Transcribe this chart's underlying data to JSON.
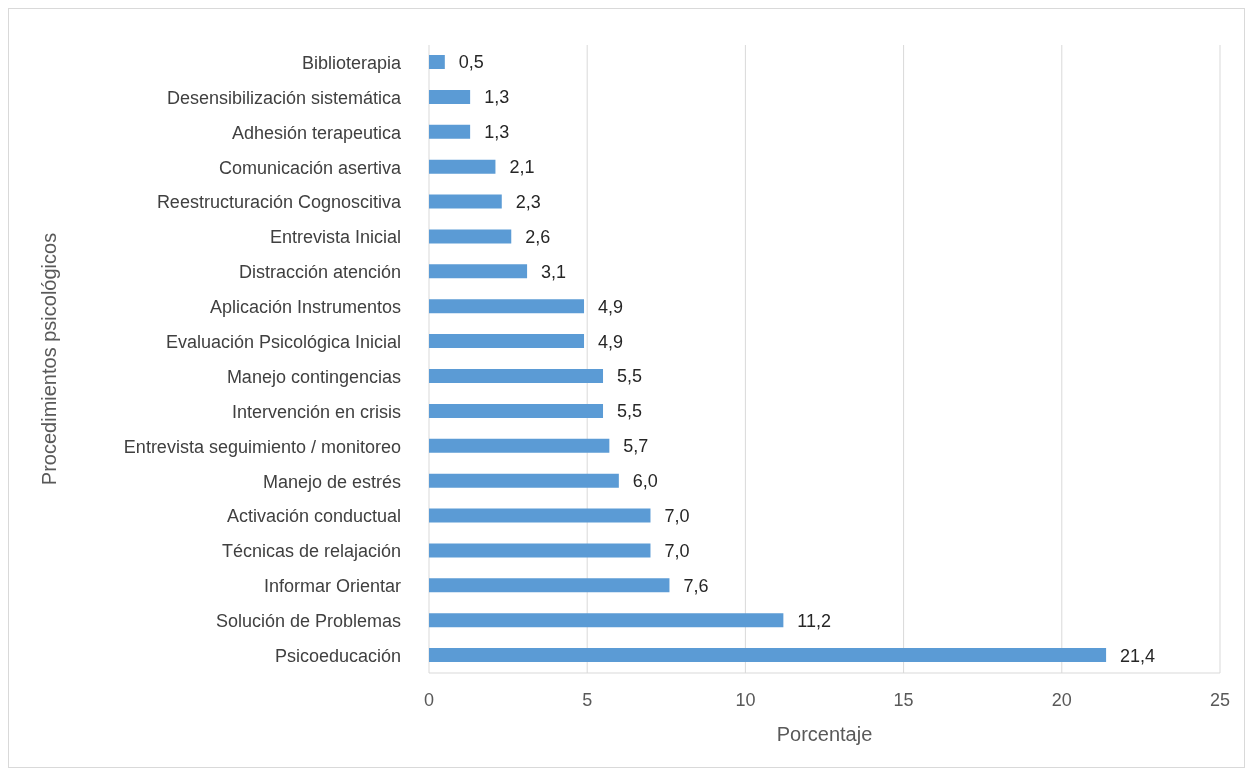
{
  "chart_data": {
    "type": "bar",
    "orientation": "horizontal",
    "xlabel": "Porcentaje",
    "ylabel": "Procedimientos psicológicos",
    "categories": [
      "Biblioterapia",
      "Desensibilización sistemática",
      "Adhesión terapeutica",
      "Comunicación asertiva",
      "Reestructuración Cognoscitiva",
      "Entrevista Inicial",
      "Distracción atención",
      "Aplicación Instrumentos",
      "Evaluación Psicológica Inicial",
      "Manejo contingencias",
      "Intervención en crisis",
      "Entrevista seguimiento / monitoreo",
      "Manejo de estrés",
      "Activación conductual",
      "Técnicas de relajación",
      "Informar Orientar",
      "Solución de Problemas",
      "Psicoeducación"
    ],
    "values": [
      0.5,
      1.3,
      1.3,
      2.1,
      2.3,
      2.6,
      3.1,
      4.9,
      4.9,
      5.5,
      5.5,
      5.7,
      6.0,
      7.0,
      7.0,
      7.6,
      11.2,
      21.4
    ],
    "value_labels": [
      "0,5",
      "1,3",
      "1,3",
      "2,1",
      "2,3",
      "2,6",
      "3,1",
      "4,9",
      "4,9",
      "5,5",
      "5,5",
      "5,7",
      "6,0",
      "7,0",
      "7,0",
      "7,6",
      "11,2",
      "21,4"
    ],
    "color": "#5b9bd5",
    "xlim": [
      0,
      25
    ],
    "xticks": [
      0,
      5,
      10,
      15,
      20,
      25
    ],
    "grid": "x"
  }
}
